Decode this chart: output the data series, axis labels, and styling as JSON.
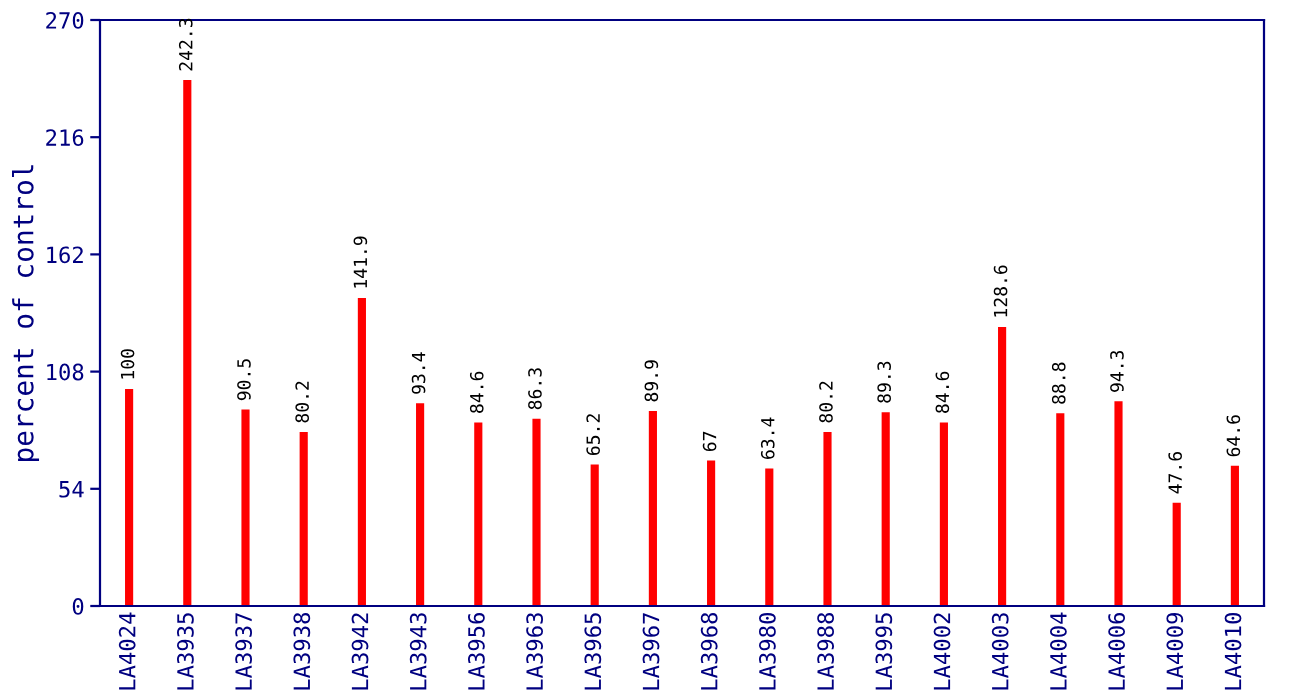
{
  "chart_data": {
    "type": "bar",
    "ylabel": "percent of control",
    "categories": [
      "LA4024",
      "LA3935",
      "LA3937",
      "LA3938",
      "LA3942",
      "LA3943",
      "LA3956",
      "LA3963",
      "LA3965",
      "LA3967",
      "LA3968",
      "LA3980",
      "LA3988",
      "LA3995",
      "LA4002",
      "LA4003",
      "LA4004",
      "LA4006",
      "LA4009",
      "LA4010"
    ],
    "values": [
      100,
      242.3,
      90.5,
      80.2,
      141.9,
      93.4,
      84.6,
      86.3,
      65.2,
      89.9,
      67,
      63.4,
      80.2,
      89.3,
      84.6,
      128.6,
      88.8,
      94.3,
      47.6,
      64.6
    ],
    "color": "#ff0000",
    "ylim": [
      0,
      270
    ],
    "yticks": [
      0,
      54,
      108,
      162,
      216,
      270
    ],
    "data_labels": true,
    "grid": false,
    "legend": false
  }
}
